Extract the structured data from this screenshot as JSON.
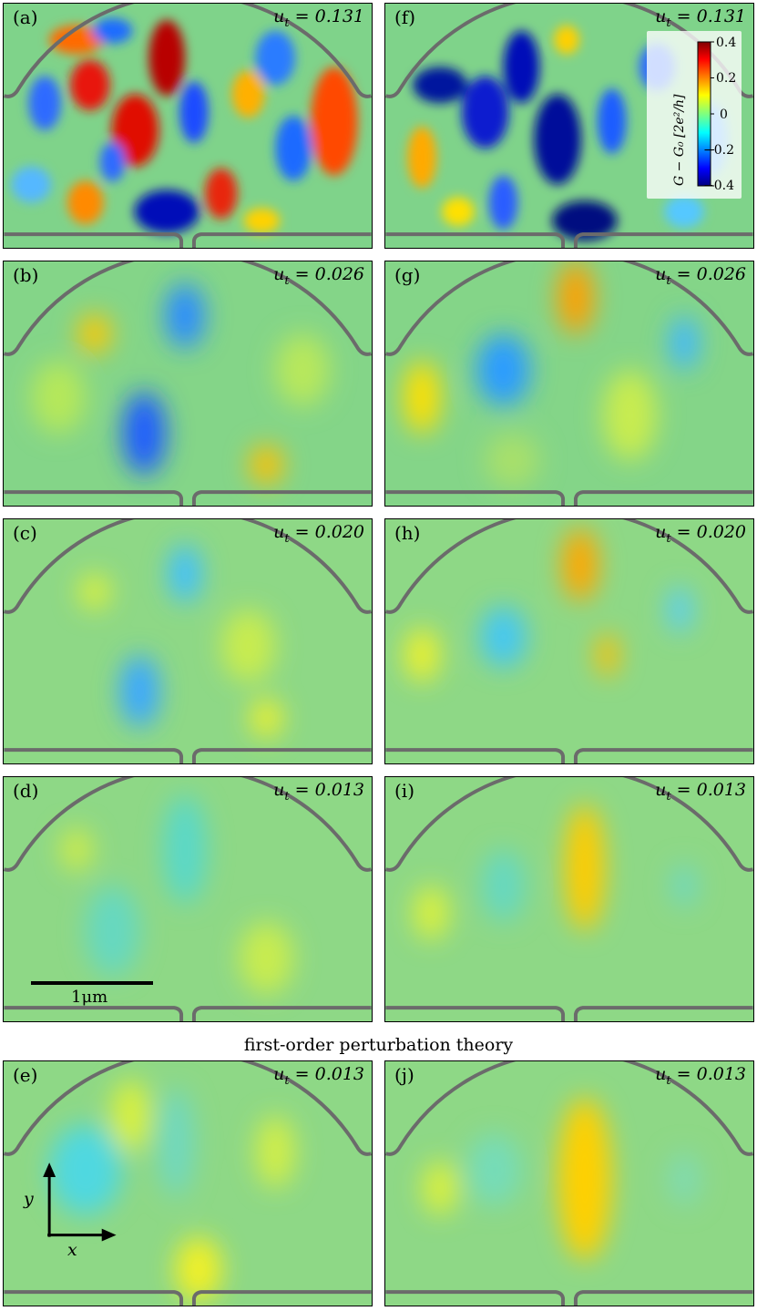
{
  "panels": [
    {
      "id": "a",
      "label": "(a)",
      "ut": "= 0.131"
    },
    {
      "id": "f",
      "label": "(f)",
      "ut": "= 0.131"
    },
    {
      "id": "b",
      "label": "(b)",
      "ut": "= 0.026"
    },
    {
      "id": "g",
      "label": "(g)",
      "ut": "= 0.026"
    },
    {
      "id": "c",
      "label": "(c)",
      "ut": "= 0.020"
    },
    {
      "id": "h",
      "label": "(h)",
      "ut": "= 0.020"
    },
    {
      "id": "d",
      "label": "(d)",
      "ut": "= 0.013"
    },
    {
      "id": "i",
      "label": "(i)",
      "ut": "= 0.013"
    },
    {
      "id": "e",
      "label": "(e)",
      "ut": "= 0.013"
    },
    {
      "id": "j",
      "label": "(j)",
      "ut": "= 0.013"
    }
  ],
  "ut_symbol": "u",
  "ut_subscript": "t",
  "section_caption": "first-order perturbation theory",
  "colorbar": {
    "label": "G − G₀ [2e²/h]",
    "ticks": [
      "0.4",
      "0.2",
      "0",
      "−0.2",
      "−0.4"
    ],
    "range": [
      -0.4,
      0.4
    ]
  },
  "scale_bar_label": "1μm",
  "axes": {
    "x": "x",
    "y": "y"
  },
  "colors": {
    "outline": "#6b6b6b",
    "background_value": "#7fd38a"
  }
}
